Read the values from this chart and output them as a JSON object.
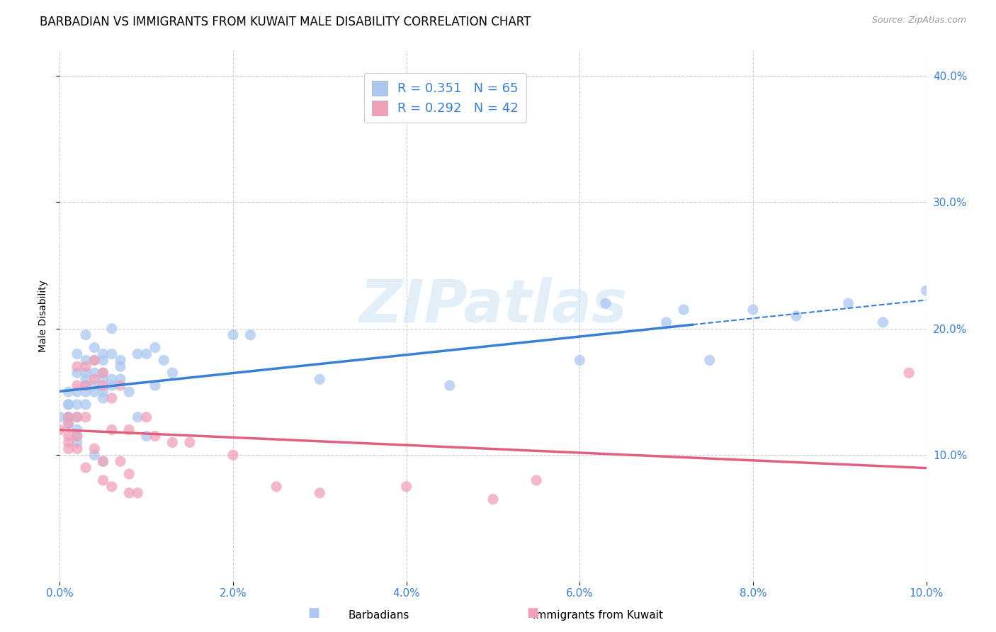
{
  "title": "BARBADIAN VS IMMIGRANTS FROM KUWAIT MALE DISABILITY CORRELATION CHART",
  "source": "Source: ZipAtlas.com",
  "ylabel": "Male Disability",
  "xlim": [
    0.0,
    0.1
  ],
  "ylim": [
    0.0,
    0.42
  ],
  "xticks": [
    0.0,
    0.02,
    0.04,
    0.06,
    0.08,
    0.1
  ],
  "yticks": [
    0.1,
    0.2,
    0.3,
    0.4
  ],
  "background_color": "#ffffff",
  "grid_color": "#cccccc",
  "barbadians": {
    "name": "Barbadians",
    "R": 0.351,
    "N": 65,
    "scatter_color": "#aac8f0",
    "line_color": "#3a7fd5",
    "x": [
      0.0,
      0.001,
      0.001,
      0.001,
      0.001,
      0.001,
      0.001,
      0.002,
      0.002,
      0.002,
      0.002,
      0.002,
      0.002,
      0.002,
      0.002,
      0.003,
      0.003,
      0.003,
      0.003,
      0.003,
      0.003,
      0.003,
      0.004,
      0.004,
      0.004,
      0.004,
      0.004,
      0.004,
      0.005,
      0.005,
      0.005,
      0.005,
      0.005,
      0.005,
      0.005,
      0.006,
      0.006,
      0.006,
      0.006,
      0.007,
      0.007,
      0.007,
      0.008,
      0.009,
      0.009,
      0.01,
      0.01,
      0.011,
      0.011,
      0.012,
      0.013,
      0.02,
      0.022,
      0.03,
      0.045,
      0.06,
      0.063,
      0.07,
      0.072,
      0.075,
      0.08,
      0.085,
      0.091,
      0.095,
      0.1
    ],
    "y": [
      0.13,
      0.13,
      0.15,
      0.14,
      0.125,
      0.13,
      0.14,
      0.18,
      0.165,
      0.15,
      0.14,
      0.13,
      0.12,
      0.115,
      0.11,
      0.195,
      0.175,
      0.165,
      0.16,
      0.155,
      0.15,
      0.14,
      0.185,
      0.175,
      0.165,
      0.155,
      0.15,
      0.1,
      0.18,
      0.175,
      0.165,
      0.16,
      0.15,
      0.145,
      0.095,
      0.2,
      0.18,
      0.16,
      0.155,
      0.175,
      0.17,
      0.16,
      0.15,
      0.18,
      0.13,
      0.18,
      0.115,
      0.185,
      0.155,
      0.175,
      0.165,
      0.195,
      0.195,
      0.16,
      0.155,
      0.175,
      0.22,
      0.205,
      0.215,
      0.175,
      0.215,
      0.21,
      0.22,
      0.205,
      0.23
    ]
  },
  "kuwait": {
    "name": "Immigrants from Kuwait",
    "R": 0.292,
    "N": 42,
    "scatter_color": "#f0a0b8",
    "line_color": "#e06080",
    "x": [
      0.0,
      0.001,
      0.001,
      0.001,
      0.001,
      0.001,
      0.002,
      0.002,
      0.002,
      0.002,
      0.002,
      0.003,
      0.003,
      0.003,
      0.003,
      0.004,
      0.004,
      0.004,
      0.005,
      0.005,
      0.005,
      0.005,
      0.006,
      0.006,
      0.006,
      0.007,
      0.007,
      0.008,
      0.008,
      0.008,
      0.009,
      0.01,
      0.011,
      0.013,
      0.015,
      0.02,
      0.025,
      0.03,
      0.04,
      0.05,
      0.055,
      0.098
    ],
    "y": [
      0.12,
      0.13,
      0.125,
      0.115,
      0.11,
      0.105,
      0.17,
      0.155,
      0.13,
      0.115,
      0.105,
      0.17,
      0.155,
      0.13,
      0.09,
      0.175,
      0.16,
      0.105,
      0.165,
      0.155,
      0.095,
      0.08,
      0.145,
      0.12,
      0.075,
      0.155,
      0.095,
      0.12,
      0.085,
      0.07,
      0.07,
      0.13,
      0.115,
      0.11,
      0.11,
      0.1,
      0.075,
      0.07,
      0.075,
      0.065,
      0.08,
      0.165
    ]
  },
  "watermark_text": "ZIPatlas",
  "legend_r1": "R = 0.351",
  "legend_n1": "N = 65",
  "legend_r2": "R = 0.292",
  "legend_n2": "N = 42",
  "title_fontsize": 12,
  "tick_fontsize": 11,
  "source_fontsize": 9,
  "ylabel_fontsize": 10
}
